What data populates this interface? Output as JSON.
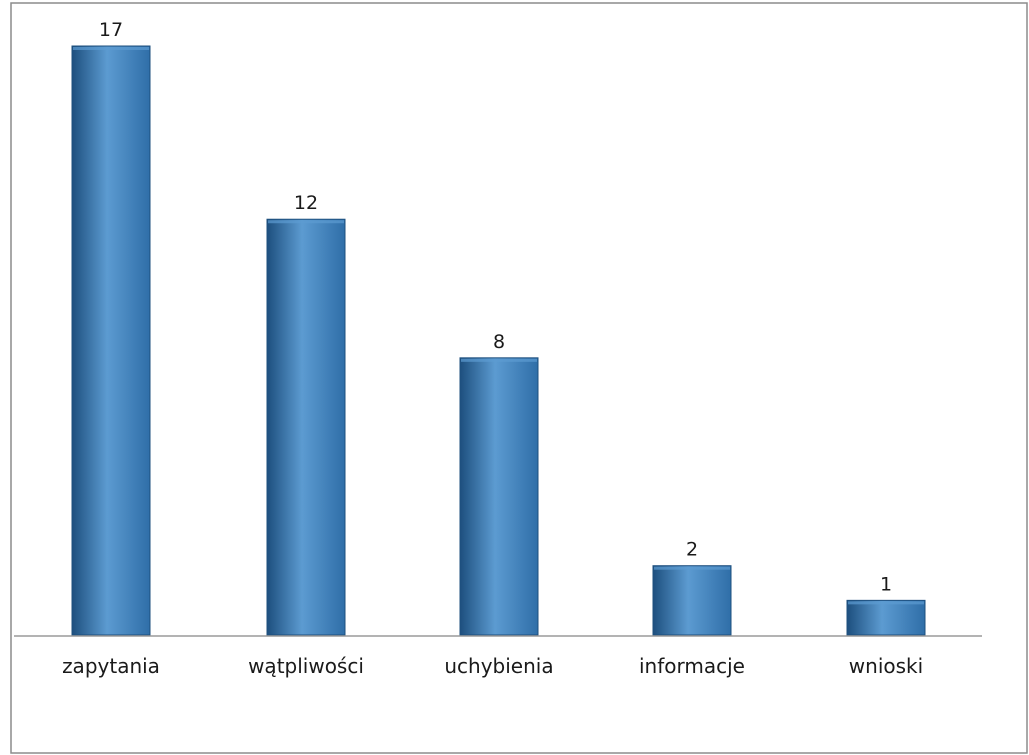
{
  "chart_data": {
    "type": "bar",
    "categories": [
      "zapytania",
      "wątpliwości",
      "uchybienia",
      "informacje",
      "wnioski"
    ],
    "values": [
      17,
      12,
      8,
      2,
      1
    ],
    "title": "",
    "xlabel": "",
    "ylabel": "",
    "ylim": [
      0,
      17
    ],
    "grid": false,
    "legend": "none",
    "data_labels": true,
    "colors": {
      "bar": "#2f6ea8",
      "bar_highlight": "#5c9bd1",
      "bar_edge": "#1d4f7e",
      "axis": "#9a9a9a",
      "frame": "#8c8c8c"
    }
  }
}
